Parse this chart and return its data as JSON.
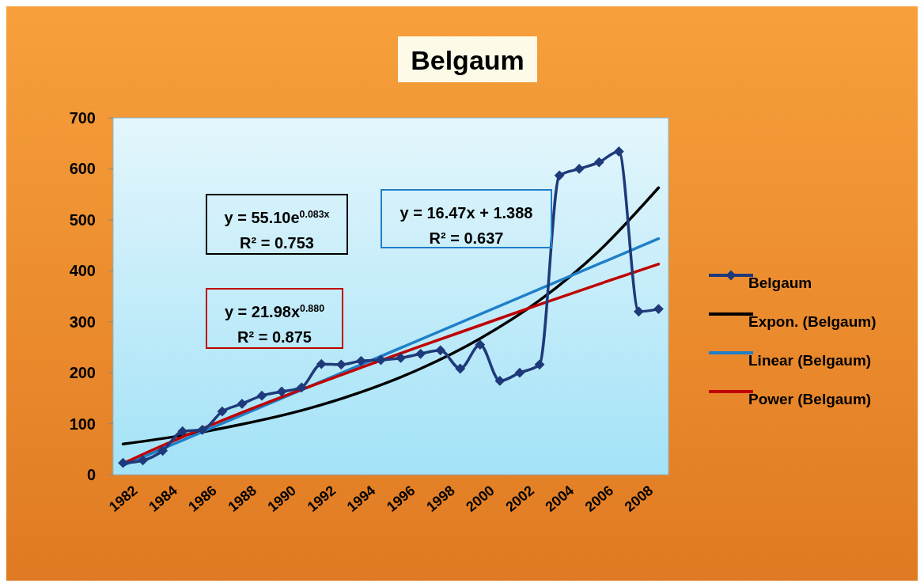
{
  "chart_data": {
    "type": "line",
    "title": "Belgaum",
    "xlim": [
      1981.5,
      2009.5
    ],
    "xticks": [
      1982,
      1984,
      1986,
      1988,
      1990,
      1992,
      1994,
      1996,
      1998,
      2000,
      2002,
      2004,
      2006,
      2008
    ],
    "ylim": [
      0,
      700
    ],
    "yticks": [
      0,
      100,
      200,
      300,
      400,
      500,
      600,
      700
    ],
    "grid": false,
    "legend": "right",
    "marker": "diamond",
    "series": [
      {
        "name": "Belgaum",
        "color": "#1f3a7a",
        "x": [
          1982,
          1983,
          1984,
          1985,
          1986,
          1987,
          1988,
          1989,
          1990,
          1991,
          1992,
          1993,
          1994,
          1995,
          1996,
          1997,
          1998,
          1999,
          2000,
          2001,
          2002,
          2003,
          2004,
          2005,
          2006,
          2007,
          2008,
          2009
        ],
        "values": [
          23,
          28,
          47,
          85,
          88,
          124,
          139,
          155,
          163,
          171,
          217,
          216,
          223,
          225,
          229,
          237,
          244,
          208,
          255,
          184,
          200,
          216,
          587,
          600,
          613,
          634,
          320,
          325
        ]
      },
      {
        "name": "Expon. (Belgaum)",
        "color": "#000000",
        "marker": "none",
        "x": [
          1982,
          1985,
          1988,
          1991,
          1994,
          1997,
          2000,
          2003,
          2006,
          2009
        ],
        "values": [
          60,
          77,
          99,
          126,
          162,
          208,
          267,
          342,
          439,
          563
        ]
      },
      {
        "name": "Linear (Belgaum)",
        "color": "#1f7fc8",
        "marker": "none",
        "x": [
          1982,
          2009
        ],
        "values": [
          18,
          463
        ]
      },
      {
        "name": "Power (Belgaum)",
        "color": "#c00000",
        "marker": "none",
        "x": [
          1982,
          1983,
          1985,
          1988,
          1991,
          1994,
          1997,
          2000,
          2003,
          2006,
          2009
        ],
        "values": [
          22,
          40,
          74,
          122,
          167,
          210,
          252,
          293,
          334,
          374,
          413
        ]
      }
    ],
    "annotations": [
      "y = 55.10e$^{0.083x}$",
      "R² = 0.753",
      "y = 16.47x + 1.388",
      "R² = 0.637",
      "y = 21.98x$^{0.880}$",
      "R² = 0.875"
    ]
  }
}
